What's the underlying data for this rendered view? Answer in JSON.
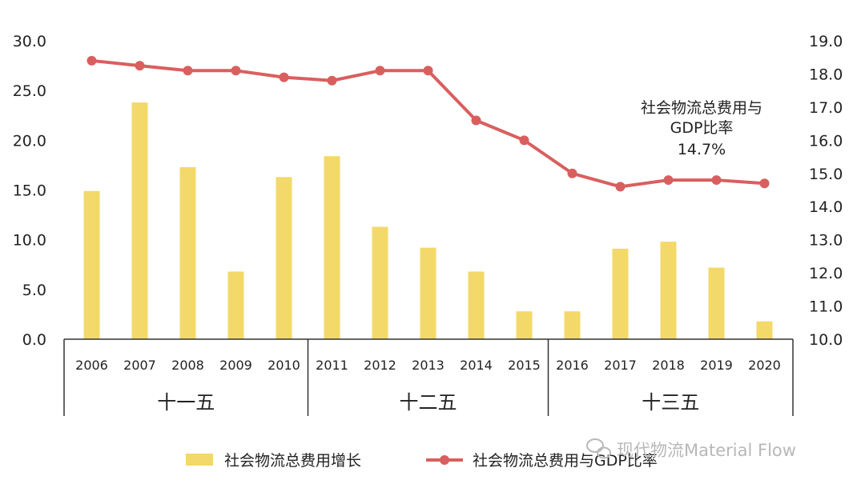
{
  "colors": {
    "bar": "#f2d96a",
    "line": "#d95f5f",
    "text": "#222222",
    "axis": "#333333",
    "watermark": "#b8b8b8"
  },
  "chart_data": {
    "type": "bar",
    "categories": [
      "2006",
      "2007",
      "2008",
      "2009",
      "2010",
      "2011",
      "2012",
      "2013",
      "2014",
      "2015",
      "2016",
      "2017",
      "2018",
      "2019",
      "2020"
    ],
    "series": [
      {
        "name": "社会物流总费用增长",
        "type": "bar",
        "axis": "left",
        "values": [
          14.9,
          23.8,
          17.3,
          6.8,
          16.3,
          18.4,
          11.3,
          9.2,
          6.8,
          2.8,
          2.8,
          9.1,
          9.8,
          7.2,
          1.8
        ]
      },
      {
        "name": "社会物流总费用与GDP比率",
        "type": "line",
        "axis": "right",
        "values": [
          18.4,
          18.25,
          18.1,
          18.1,
          17.9,
          17.8,
          18.1,
          18.1,
          16.6,
          16.0,
          15.0,
          14.6,
          14.8,
          14.8,
          14.7
        ]
      }
    ],
    "y_left": {
      "ticks": [
        "30.0",
        "25.0",
        "20.0",
        "15.0",
        "10.0",
        "5.0",
        "0.0"
      ],
      "ylim": [
        0,
        30
      ]
    },
    "y_right": {
      "ticks": [
        "19.0",
        "18.0",
        "17.0",
        "16.0",
        "15.0",
        "14.0",
        "13.0",
        "12.0",
        "11.0",
        "10.0"
      ],
      "ylim": [
        10,
        19
      ]
    },
    "groups": [
      {
        "label": "十一五",
        "from": 0,
        "to": 4
      },
      {
        "label": "十二五",
        "from": 5,
        "to": 9
      },
      {
        "label": "十三五",
        "from": 10,
        "to": 14
      }
    ],
    "annotation": {
      "lines": [
        "社会物流总费用与",
        "GDP比率",
        "14.7%"
      ]
    },
    "legend": {
      "position": "bottom"
    },
    "grid": false
  },
  "watermark": {
    "icon": "wechat-icon",
    "text": "现代物流Material Flow"
  }
}
